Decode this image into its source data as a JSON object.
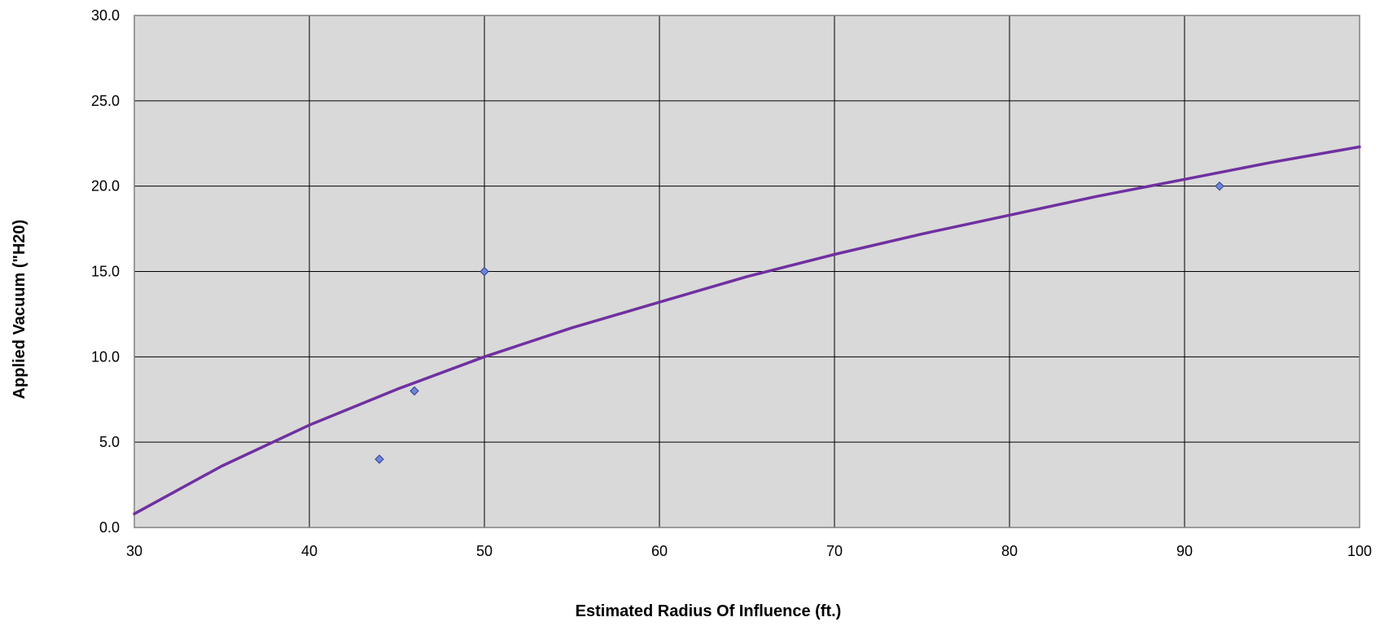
{
  "chart_data": {
    "type": "scatter",
    "title": "",
    "xlabel": "Estimated Radius Of Influence (ft.)",
    "ylabel": "Applied Vacuum (\"H20)",
    "xlim": [
      30,
      100
    ],
    "ylim": [
      0,
      30
    ],
    "x_ticks": [
      30,
      40,
      50,
      60,
      70,
      80,
      90,
      100
    ],
    "x_tick_labels": [
      "30",
      "40",
      "50",
      "60",
      "70",
      "80",
      "90",
      "100"
    ],
    "y_ticks": [
      0,
      5,
      10,
      15,
      20,
      25,
      30
    ],
    "y_tick_labels": [
      "0.0",
      "5.0",
      "10.0",
      "15.0",
      "20.0",
      "25.0",
      "30.0"
    ],
    "grid": true,
    "legend": "none",
    "plot_background": "#D9D9D9",
    "series": [
      {
        "kind": "scatter",
        "marker": "diamond",
        "color": "#6F86D8",
        "points": [
          {
            "x": 44,
            "y": 4.0
          },
          {
            "x": 46,
            "y": 8.0
          },
          {
            "x": 50,
            "y": 15.0
          },
          {
            "x": 92,
            "y": 20.0
          }
        ]
      },
      {
        "kind": "trendline",
        "color": "#7030A0",
        "points": [
          {
            "x": 30,
            "y": 0.8
          },
          {
            "x": 35,
            "y": 3.6
          },
          {
            "x": 40,
            "y": 6.0
          },
          {
            "x": 45,
            "y": 8.1
          },
          {
            "x": 50,
            "y": 10.0
          },
          {
            "x": 55,
            "y": 11.7
          },
          {
            "x": 60,
            "y": 13.2
          },
          {
            "x": 65,
            "y": 14.7
          },
          {
            "x": 70,
            "y": 16.0
          },
          {
            "x": 75,
            "y": 17.2
          },
          {
            "x": 80,
            "y": 18.3
          },
          {
            "x": 85,
            "y": 19.4
          },
          {
            "x": 90,
            "y": 20.4
          },
          {
            "x": 95,
            "y": 21.4
          },
          {
            "x": 100,
            "y": 22.3
          }
        ]
      }
    ]
  }
}
